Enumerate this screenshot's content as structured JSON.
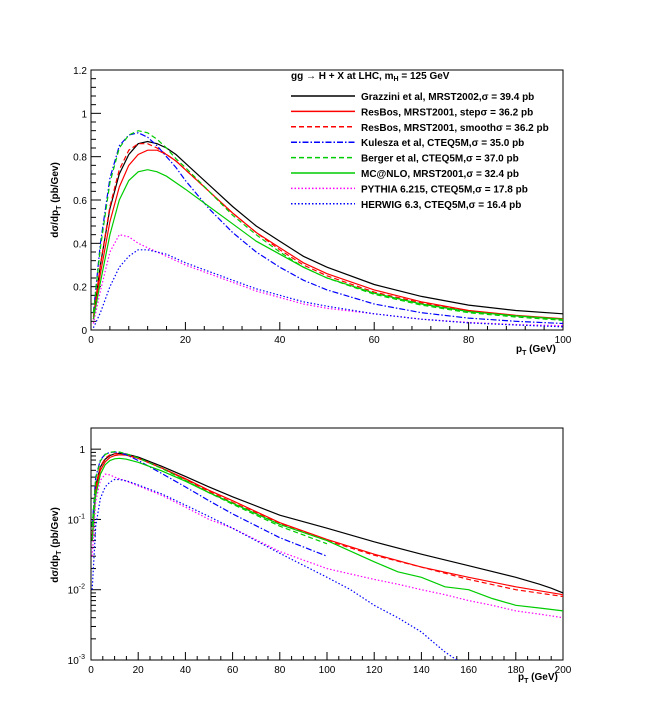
{
  "chart_data": [
    {
      "type": "line",
      "panel": "top",
      "title": "gg → H + X at LHC, m_H = 125 GeV",
      "title_main": "gg → H + X at LHC, m",
      "title_sub": "H",
      "title_end": " = 125 GeV",
      "xlabel": "p_T (GeV)",
      "xlabel_main": "p",
      "xlabel_sub": "T",
      "xlabel_end": " (GeV)",
      "ylabel": "dσ/dp_T (pb/Gev)",
      "ylabel_main": "dσ/dp",
      "ylabel_sub": "T",
      "ylabel_end": " (pb/Gev)",
      "y_scale": "linear",
      "xlim": [
        0,
        100
      ],
      "ylim": [
        0,
        1.2
      ],
      "x_ticks": [
        0,
        20,
        40,
        60,
        80,
        100
      ],
      "x_tick_labels": [
        "0",
        "20",
        "40",
        "60",
        "80",
        "100"
      ],
      "y_ticks": [
        0,
        0.2,
        0.4,
        0.6,
        0.8,
        1,
        1.2
      ],
      "y_tick_labels": [
        "0",
        "0.2",
        "0.4",
        "0.6",
        "0.8",
        "1",
        "1.2"
      ],
      "legend_position": "top-right",
      "series": [
        {
          "name": "Grazzini et al, MRST2002,σ = 39.4 pb",
          "color": "#000000",
          "style": "solid",
          "x": [
            0.5,
            2,
            4,
            6,
            8,
            10,
            12,
            14,
            16,
            18,
            20,
            25,
            30,
            35,
            40,
            45,
            50,
            60,
            70,
            80,
            90,
            100
          ],
          "y": [
            0.05,
            0.3,
            0.56,
            0.72,
            0.81,
            0.86,
            0.87,
            0.86,
            0.84,
            0.81,
            0.77,
            0.67,
            0.57,
            0.48,
            0.41,
            0.34,
            0.29,
            0.21,
            0.155,
            0.115,
            0.09,
            0.075
          ]
        },
        {
          "name": "ResBos, MRST2001, stepσ = 36.2 pb",
          "color": "#ff0000",
          "style": "solid",
          "x": [
            0.5,
            2,
            4,
            6,
            8,
            10,
            12,
            14,
            16,
            18,
            20,
            25,
            30,
            35,
            40,
            45,
            50,
            60,
            70,
            80,
            90,
            100
          ],
          "y": [
            0.05,
            0.26,
            0.5,
            0.66,
            0.76,
            0.81,
            0.83,
            0.83,
            0.81,
            0.78,
            0.74,
            0.64,
            0.54,
            0.45,
            0.38,
            0.31,
            0.26,
            0.185,
            0.13,
            0.09,
            0.068,
            0.052
          ]
        },
        {
          "name": "ResBos, MRST2001, smoothσ = 36.2 pb",
          "color": "#ff0000",
          "style": "dashed",
          "x": [
            0.5,
            2,
            4,
            6,
            8,
            10,
            12,
            14,
            16,
            18,
            20,
            25,
            30,
            35,
            40,
            45,
            50,
            60,
            70,
            80,
            90,
            100
          ],
          "y": [
            0.06,
            0.3,
            0.57,
            0.74,
            0.83,
            0.86,
            0.86,
            0.84,
            0.81,
            0.78,
            0.74,
            0.64,
            0.54,
            0.45,
            0.37,
            0.3,
            0.25,
            0.175,
            0.125,
            0.088,
            0.065,
            0.05
          ]
        },
        {
          "name": "Kulesza et al, CTEQ5M,σ = 35.0 pb",
          "color": "#0000ff",
          "style": "dashdot",
          "x": [
            0.5,
            2,
            4,
            6,
            8,
            10,
            12,
            14,
            16,
            18,
            20,
            25,
            30,
            35,
            40,
            45,
            50,
            60,
            70,
            80,
            90,
            100
          ],
          "y": [
            0.08,
            0.4,
            0.7,
            0.85,
            0.9,
            0.91,
            0.89,
            0.85,
            0.8,
            0.75,
            0.69,
            0.56,
            0.45,
            0.36,
            0.29,
            0.23,
            0.185,
            0.12,
            0.08,
            0.055,
            0.04,
            0.03
          ]
        },
        {
          "name": "Berger et al, CTEQ5M,σ = 37.0 pb",
          "color": "#00cc00",
          "style": "dashed",
          "x": [
            0.5,
            2,
            4,
            6,
            8,
            10,
            12,
            14,
            16,
            18,
            20,
            25,
            30,
            35,
            40,
            45,
            50,
            60,
            70,
            80,
            90,
            100
          ],
          "y": [
            0.08,
            0.38,
            0.68,
            0.84,
            0.9,
            0.92,
            0.91,
            0.88,
            0.84,
            0.79,
            0.75,
            0.64,
            0.53,
            0.44,
            0.36,
            0.29,
            0.24,
            0.165,
            0.115,
            0.08,
            0.06,
            0.045
          ]
        },
        {
          "name": "MC@NLO, MRST2001,σ = 32.4 pb",
          "color": "#00cc00",
          "style": "solid",
          "x": [
            0.5,
            2,
            4,
            6,
            8,
            10,
            12,
            14,
            16,
            18,
            20,
            25,
            30,
            35,
            40,
            45,
            50,
            60,
            70,
            80,
            90,
            100
          ],
          "y": [
            0.05,
            0.22,
            0.44,
            0.6,
            0.69,
            0.73,
            0.74,
            0.73,
            0.71,
            0.68,
            0.65,
            0.57,
            0.49,
            0.41,
            0.35,
            0.29,
            0.24,
            0.17,
            0.12,
            0.085,
            0.065,
            0.05
          ]
        },
        {
          "name": "PYTHIA 6.215, CTEQ5M,σ = 17.8 pb",
          "color": "#ff00ff",
          "style": "dotted",
          "x": [
            0.5,
            2,
            4,
            6,
            8,
            10,
            12,
            14,
            16,
            18,
            20,
            25,
            30,
            35,
            40,
            45,
            50,
            60,
            70,
            80,
            90,
            100
          ],
          "y": [
            0.03,
            0.18,
            0.36,
            0.44,
            0.43,
            0.4,
            0.38,
            0.36,
            0.34,
            0.32,
            0.3,
            0.26,
            0.22,
            0.18,
            0.15,
            0.12,
            0.1,
            0.075,
            0.05,
            0.035,
            0.025,
            0.02
          ]
        },
        {
          "name": "HERWIG 6.3, CTEQ5M,σ = 16.4 pb",
          "color": "#0000ff",
          "style": "dotted",
          "x": [
            0.5,
            2,
            4,
            6,
            8,
            10,
            12,
            14,
            16,
            18,
            20,
            25,
            30,
            35,
            40,
            45,
            50,
            60,
            70,
            80,
            90,
            100
          ],
          "y": [
            0.01,
            0.08,
            0.2,
            0.29,
            0.34,
            0.37,
            0.37,
            0.36,
            0.35,
            0.33,
            0.31,
            0.27,
            0.23,
            0.19,
            0.16,
            0.13,
            0.11,
            0.075,
            0.05,
            0.033,
            0.023,
            0.015
          ]
        }
      ]
    },
    {
      "type": "line",
      "panel": "bottom",
      "xlabel": "p_T (GeV)",
      "xlabel_main": "p",
      "xlabel_sub": "T",
      "xlabel_end": " (GeV)",
      "ylabel": "dσ/dp_T (pb/Gev)",
      "ylabel_main": "dσ/dp",
      "ylabel_sub": "T",
      "ylabel_end": " (pb/Gev)",
      "y_scale": "log",
      "xlim": [
        0,
        200
      ],
      "ylim": [
        0.001,
        2
      ],
      "x_ticks": [
        0,
        20,
        40,
        60,
        80,
        100,
        120,
        140,
        160,
        180,
        200
      ],
      "x_tick_labels": [
        "0",
        "20",
        "40",
        "60",
        "80",
        "100",
        "120",
        "140",
        "160",
        "180",
        "200"
      ],
      "y_ticks": [
        0.001,
        0.01,
        0.1,
        1
      ],
      "y_tick_base": [
        "10",
        "10",
        "10",
        "1"
      ],
      "y_tick_exp": [
        "-3",
        "-2",
        "-1",
        ""
      ],
      "series": [
        {
          "name": "Grazzini et al, MRST2002,σ = 39.4 pb",
          "color": "#000000",
          "style": "solid",
          "x": [
            0.5,
            2,
            4,
            6,
            8,
            10,
            12,
            15,
            20,
            30,
            40,
            50,
            60,
            80,
            100,
            120,
            140,
            160,
            180,
            190,
            195,
            200
          ],
          "y": [
            0.05,
            0.3,
            0.56,
            0.72,
            0.81,
            0.86,
            0.87,
            0.85,
            0.77,
            0.57,
            0.41,
            0.29,
            0.21,
            0.115,
            0.075,
            0.048,
            0.032,
            0.022,
            0.015,
            0.012,
            0.0105,
            0.009
          ]
        },
        {
          "name": "ResBos, MRST2001, stepσ = 36.2 pb",
          "color": "#ff0000",
          "style": "solid",
          "x": [
            0.5,
            2,
            4,
            6,
            8,
            10,
            12,
            15,
            20,
            30,
            40,
            50,
            60,
            80,
            100,
            120,
            140,
            160,
            180,
            200
          ],
          "y": [
            0.05,
            0.26,
            0.5,
            0.66,
            0.76,
            0.81,
            0.83,
            0.82,
            0.74,
            0.54,
            0.38,
            0.26,
            0.185,
            0.09,
            0.052,
            0.032,
            0.021,
            0.015,
            0.011,
            0.0085
          ]
        },
        {
          "name": "ResBos, MRST2001, smoothσ = 36.2 pb",
          "color": "#ff0000",
          "style": "dashed",
          "x": [
            0.5,
            2,
            4,
            6,
            8,
            10,
            12,
            15,
            20,
            30,
            40,
            50,
            60,
            80,
            100,
            120,
            140,
            160,
            180,
            200
          ],
          "y": [
            0.06,
            0.3,
            0.57,
            0.74,
            0.83,
            0.86,
            0.86,
            0.83,
            0.74,
            0.54,
            0.37,
            0.25,
            0.175,
            0.088,
            0.05,
            0.031,
            0.021,
            0.014,
            0.01,
            0.008
          ]
        },
        {
          "name": "Kulesza et al, CTEQ5M,σ = 35.0 pb",
          "color": "#0000ff",
          "style": "dashdot",
          "x": [
            0.5,
            2,
            4,
            6,
            8,
            10,
            12,
            15,
            20,
            30,
            40,
            50,
            60,
            80,
            100
          ],
          "y": [
            0.08,
            0.4,
            0.7,
            0.85,
            0.9,
            0.91,
            0.89,
            0.83,
            0.69,
            0.45,
            0.29,
            0.185,
            0.12,
            0.055,
            0.03
          ]
        },
        {
          "name": "Berger et al, CTEQ5M,σ = 37.0 pb",
          "color": "#00cc00",
          "style": "dashed",
          "x": [
            0.5,
            2,
            4,
            6,
            8,
            10,
            12,
            15,
            20,
            30,
            40,
            50,
            60,
            80,
            100
          ],
          "y": [
            0.08,
            0.38,
            0.68,
            0.84,
            0.9,
            0.92,
            0.91,
            0.86,
            0.75,
            0.53,
            0.36,
            0.24,
            0.165,
            0.08,
            0.045
          ]
        },
        {
          "name": "MC@NLO, MRST2001,σ = 32.4 pb",
          "color": "#00cc00",
          "style": "solid",
          "x": [
            0.5,
            2,
            4,
            6,
            8,
            10,
            12,
            15,
            20,
            30,
            40,
            50,
            60,
            80,
            100,
            120,
            130,
            140,
            150,
            160,
            170,
            180,
            190,
            200
          ],
          "y": [
            0.05,
            0.22,
            0.44,
            0.6,
            0.69,
            0.73,
            0.74,
            0.72,
            0.65,
            0.49,
            0.35,
            0.24,
            0.17,
            0.085,
            0.05,
            0.025,
            0.018,
            0.015,
            0.011,
            0.01,
            0.0075,
            0.006,
            0.0055,
            0.005
          ]
        },
        {
          "name": "PYTHIA 6.215, CTEQ5M,σ = 17.8 pb",
          "color": "#ff00ff",
          "style": "dotted",
          "x": [
            0.5,
            2,
            4,
            6,
            8,
            10,
            12,
            15,
            20,
            30,
            40,
            50,
            60,
            80,
            100,
            120,
            130,
            140,
            150,
            160,
            170,
            180,
            190,
            200
          ],
          "y": [
            0.03,
            0.18,
            0.36,
            0.44,
            0.43,
            0.4,
            0.38,
            0.35,
            0.3,
            0.22,
            0.15,
            0.1,
            0.075,
            0.035,
            0.02,
            0.014,
            0.012,
            0.01,
            0.0085,
            0.007,
            0.006,
            0.005,
            0.0045,
            0.004
          ]
        },
        {
          "name": "HERWIG 6.3, CTEQ5M,σ = 16.4 pb",
          "color": "#0000ff",
          "style": "dotted",
          "x": [
            0.5,
            2,
            4,
            6,
            8,
            10,
            12,
            15,
            20,
            30,
            40,
            50,
            60,
            80,
            100,
            110,
            120,
            130,
            140,
            145,
            150,
            155
          ],
          "y": [
            0.01,
            0.08,
            0.2,
            0.29,
            0.34,
            0.37,
            0.37,
            0.355,
            0.31,
            0.23,
            0.16,
            0.11,
            0.075,
            0.033,
            0.015,
            0.01,
            0.006,
            0.004,
            0.0025,
            0.0018,
            0.0013,
            0.001
          ]
        }
      ]
    }
  ]
}
